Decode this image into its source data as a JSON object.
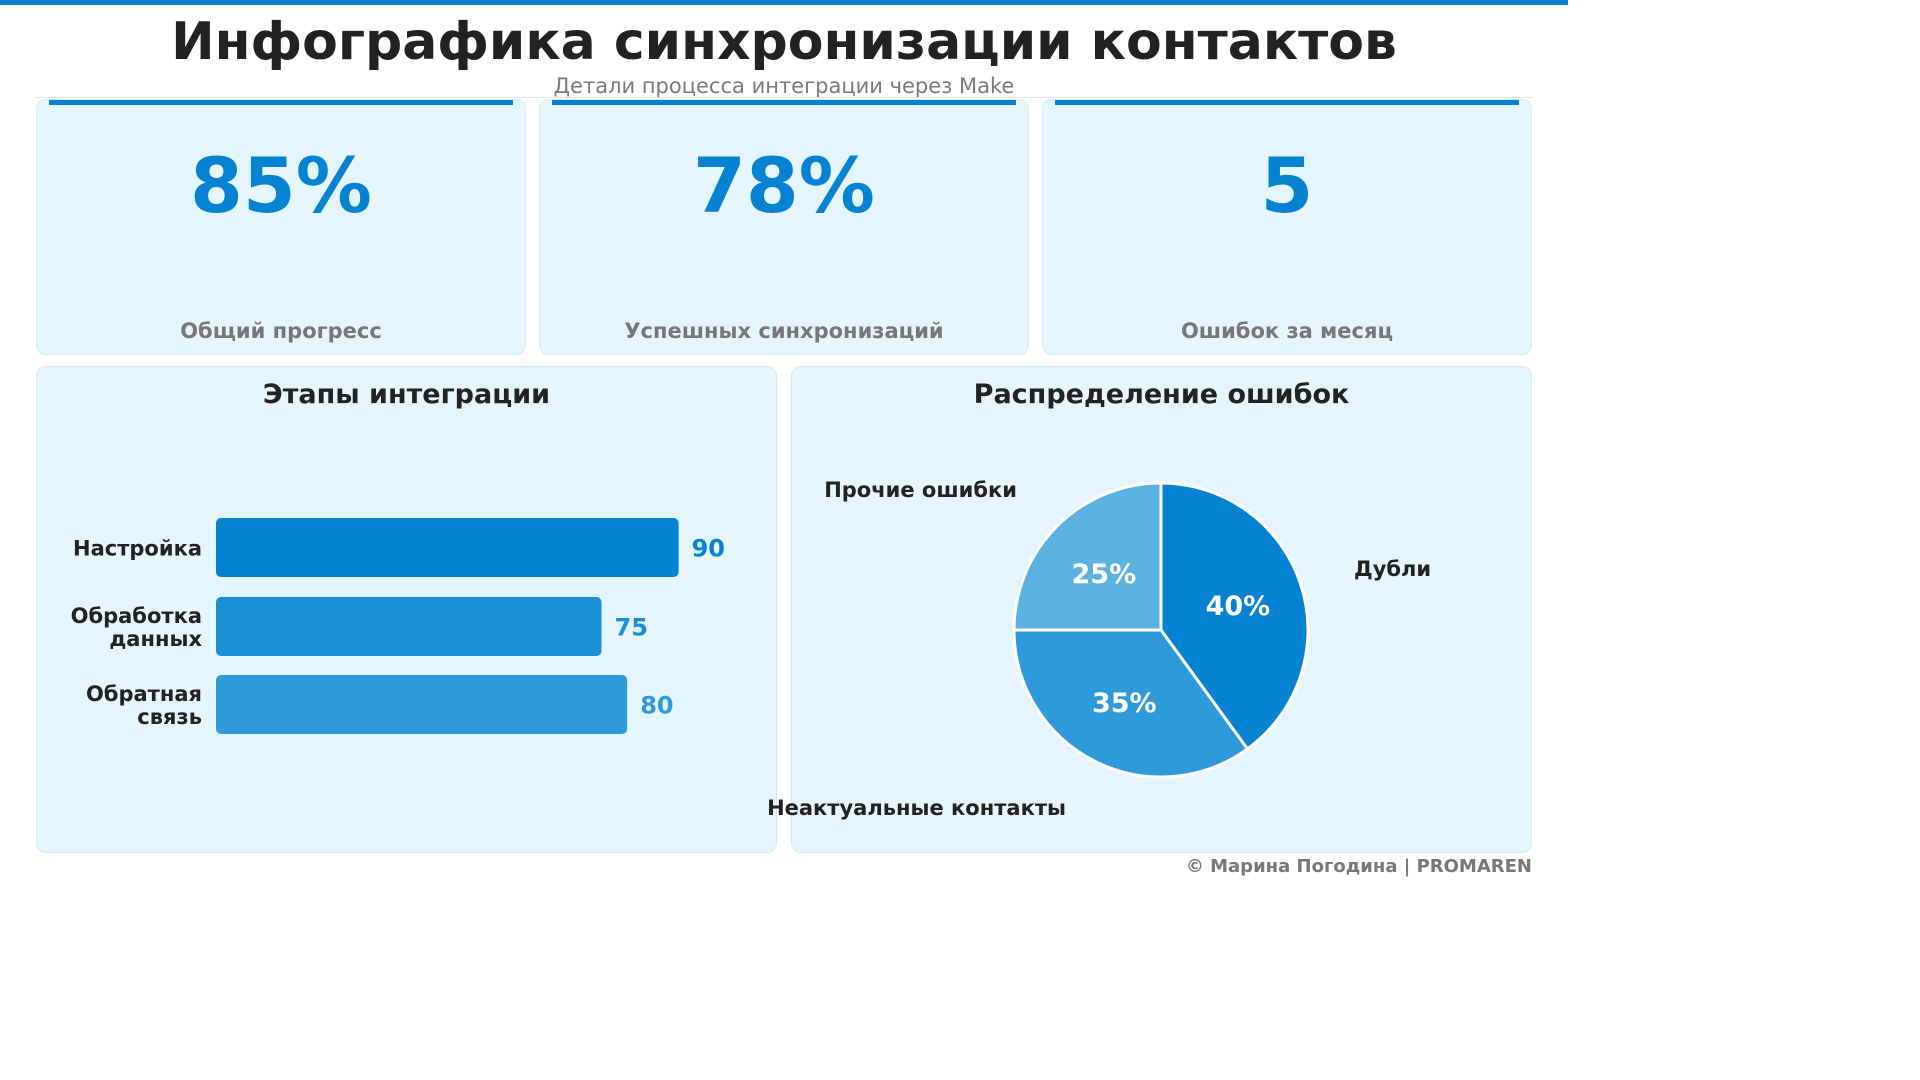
{
  "header": {
    "title": "Инфографика синхронизации контактов",
    "subtitle": "Детали процесса интеграции через Make"
  },
  "kpis": [
    {
      "value": "85%",
      "label": "Общий прогресс"
    },
    {
      "value": "78%",
      "label": "Успешных синхронизаций"
    },
    {
      "value": "5",
      "label": "Ошибок за месяц"
    }
  ],
  "colors": {
    "accent": "#0583d2",
    "card_bg": "#e5f5fe"
  },
  "chart_data": [
    {
      "type": "bar",
      "orientation": "horizontal",
      "title": "Этапы интеграции",
      "categories": [
        [
          "Настройка"
        ],
        [
          "Обработка",
          "данных"
        ],
        [
          "Обратная",
          "связь"
        ]
      ],
      "values": [
        90,
        75,
        80
      ],
      "xlim": [
        0,
        100
      ],
      "colors": [
        "#0583d2",
        "#1a8fd5",
        "#2e9ad9"
      ],
      "data_labels": [
        "90",
        "75",
        "80"
      ]
    },
    {
      "type": "pie",
      "title": "Распределение ошибок",
      "labels": [
        "Дубли",
        "Неактуальные контакты",
        "Прочие ошибки"
      ],
      "values": [
        40,
        35,
        25
      ],
      "data_labels": [
        "40%",
        "35%",
        "25%"
      ],
      "colors": [
        "#0583d2",
        "#2e9ad9",
        "#5bb1e0"
      ]
    }
  ],
  "footer": "© Марина Погодина | PROMAREN"
}
